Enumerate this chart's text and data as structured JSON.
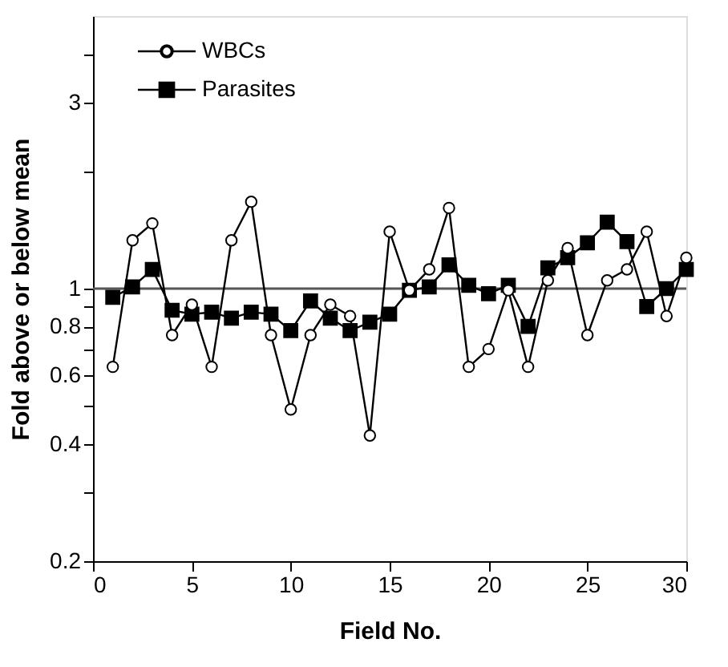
{
  "chart_data": {
    "type": "line",
    "xlabel": "Field No.",
    "ylabel": "Fold above or below mean",
    "x": [
      1,
      2,
      3,
      4,
      5,
      6,
      7,
      8,
      9,
      10,
      11,
      12,
      13,
      14,
      15,
      16,
      17,
      18,
      19,
      20,
      21,
      22,
      23,
      24,
      25,
      26,
      27,
      28,
      29,
      30
    ],
    "series": [
      {
        "name": "WBCs",
        "color": "#000000",
        "marker": "circle",
        "values": [
          0.63,
          1.33,
          1.47,
          0.76,
          0.91,
          0.63,
          1.33,
          1.67,
          0.76,
          0.49,
          0.76,
          0.91,
          0.85,
          0.42,
          1.4,
          0.99,
          1.12,
          1.61,
          0.63,
          0.7,
          0.99,
          0.63,
          1.05,
          1.27,
          0.76,
          1.05,
          1.12,
          1.4,
          0.85,
          1.2
        ]
      },
      {
        "name": "Parasites",
        "color": "#000000",
        "marker": "square",
        "values": [
          0.95,
          1.01,
          1.12,
          0.88,
          0.86,
          0.87,
          0.84,
          0.87,
          0.86,
          0.78,
          0.93,
          0.84,
          0.78,
          0.82,
          0.86,
          0.99,
          1.01,
          1.15,
          1.02,
          0.97,
          1.02,
          0.8,
          1.13,
          1.2,
          1.31,
          1.48,
          1.32,
          0.9,
          1.0,
          1.12
        ]
      }
    ],
    "xlim": [
      0,
      30
    ],
    "xticks": [
      0,
      5,
      10,
      15,
      20,
      25,
      30
    ],
    "ylim": [
      0.2,
      5
    ],
    "log": "y",
    "yticks": [
      0.2,
      {
        "value": 0.3,
        "label": null
      },
      0.4,
      {
        "value": 0.5,
        "label": null
      },
      0.6,
      {
        "value": 0.7,
        "label": null
      },
      0.8,
      {
        "value": 0.9,
        "label": null
      },
      1,
      {
        "value": 2,
        "label": null
      },
      3,
      {
        "value": 4,
        "label": null
      }
    ],
    "ref_lines": [
      {
        "axis": "y",
        "value": 1,
        "color": "#555555"
      }
    ],
    "legend": "top left",
    "grid": false,
    "line_style": "solid"
  }
}
